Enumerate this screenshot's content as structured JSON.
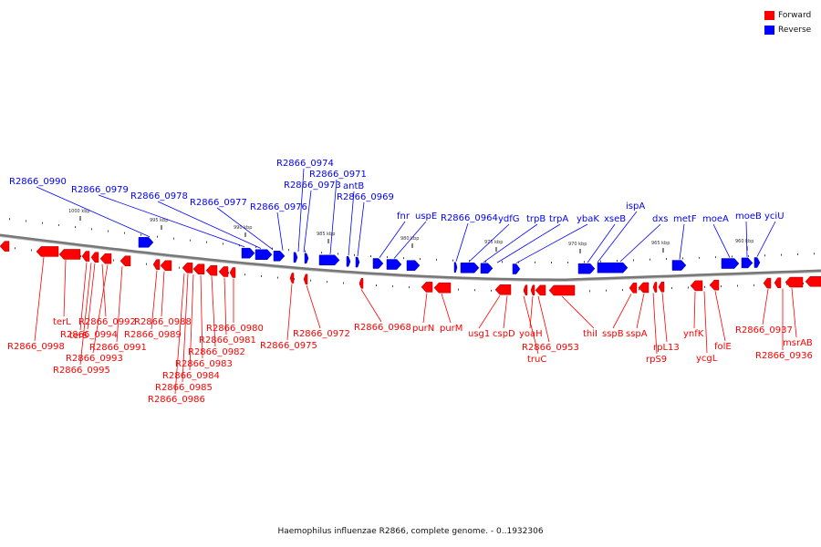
{
  "legend": {
    "forward": {
      "label": "Forward",
      "color": "#ff0000"
    },
    "reverse": {
      "label": "Reverse",
      "color": "#0000ff"
    }
  },
  "caption": "Haemophilus influenzae R2866, complete genome. - 0..1932306",
  "ticks": [
    "1000 kbp",
    "995 kbp",
    "990 kbp",
    "985 kbp",
    "980 kbp",
    "975 kbp",
    "970 kbp",
    "965 kbp",
    "960 kbp"
  ],
  "reverse_labels": [
    "R2866_0990",
    "R2866_0979",
    "R2866_0978",
    "R2866_0977",
    "R2866_0976",
    "R2866_0974",
    "R2866_0973",
    "R2866_0971",
    "antB",
    "R2866_0969",
    "fnr",
    "uspE",
    "R2866_0964",
    "ydfG",
    "trpB",
    "trpA",
    "ybaK",
    "xseB",
    "ispA",
    "dxs",
    "metF",
    "moeA",
    "moeB",
    "yciU"
  ],
  "forward_labels": [
    "R2866_0998",
    "terL",
    "terS",
    "R2866_0994",
    "R2866_0992",
    "R2866_0993",
    "R2866_0991",
    "R2866_0995",
    "R2866_0989",
    "R2866_0988",
    "R2866_0986",
    "R2866_0985",
    "R2866_0984",
    "R2866_0983",
    "R2866_0982",
    "R2866_0981",
    "R2866_0980",
    "R2866_0975",
    "R2866_0972",
    "R2866_0968",
    "purN",
    "purM",
    "usg1",
    "cspD",
    "truC",
    "yoaH",
    "R2866_0953",
    "thiI",
    "sspB",
    "sspA",
    "rpS9",
    "rpL13",
    "ycgL",
    "ynfK",
    "folE",
    "R2866_0937",
    "R2866_0936",
    "msrAB"
  ]
}
